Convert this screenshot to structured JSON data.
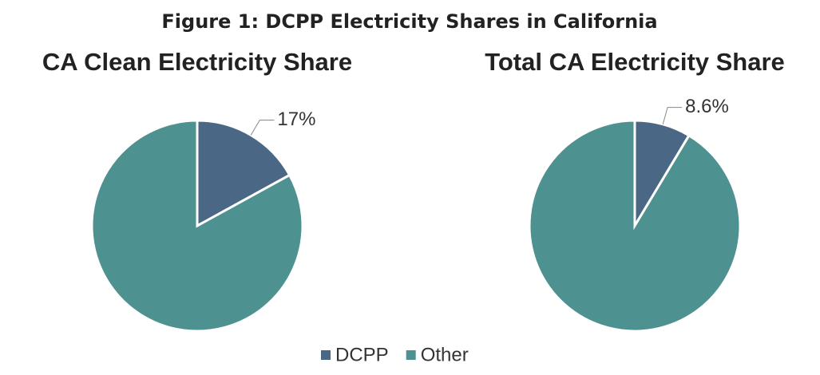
{
  "figure_title": "Figure 1: DCPP Electricity Shares in California",
  "chart_data": [
    {
      "type": "pie",
      "title": "CA Clean Electricity Share",
      "categories": [
        "DCPP",
        "Other"
      ],
      "values": [
        17,
        83
      ],
      "value_labels": [
        "17%",
        null
      ],
      "colors": [
        "#4a6785",
        "#4e9191"
      ],
      "legend": "bottom"
    },
    {
      "type": "pie",
      "title": "Total CA Electricity Share",
      "categories": [
        "DCPP",
        "Other"
      ],
      "values": [
        8.6,
        91.4
      ],
      "value_labels": [
        "8.6%",
        null
      ],
      "colors": [
        "#4a6785",
        "#4e9191"
      ],
      "legend": "bottom"
    }
  ]
}
